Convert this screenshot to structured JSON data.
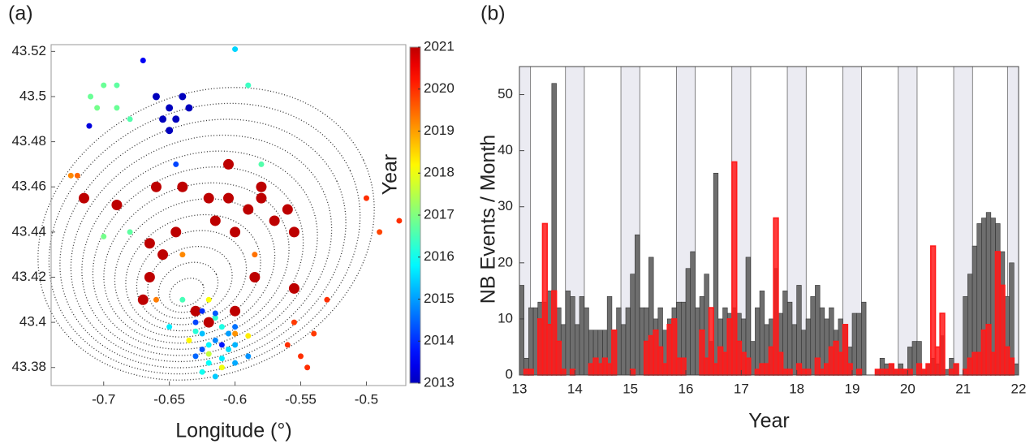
{
  "chart_data": [
    {
      "type": "scatter",
      "label": "(a)",
      "xlabel": "Longitude (°)",
      "colorbar_label": "Year",
      "colormap": "jet",
      "xlim": [
        -0.74,
        -0.47
      ],
      "ylim": [
        43.372,
        43.523
      ],
      "xticks": [
        -0.7,
        -0.65,
        -0.6,
        -0.55,
        -0.5
      ],
      "yticks": [
        43.38,
        43.4,
        43.42,
        43.44,
        43.46,
        43.48,
        43.5,
        43.52
      ],
      "clim": [
        2013,
        2021
      ],
      "cticks": [
        2013,
        2014,
        2015,
        2016,
        2017,
        2018,
        2019,
        2020,
        2021
      ],
      "x": [
        -0.715,
        -0.69,
        -0.66,
        -0.64,
        -0.62,
        -0.605,
        -0.59,
        -0.57,
        -0.555,
        -0.56,
        -0.665,
        -0.655,
        -0.67,
        -0.665,
        -0.63,
        -0.62,
        -0.6,
        -0.585,
        -0.555,
        -0.645,
        -0.6,
        -0.58,
        -0.605,
        -0.58,
        -0.615,
        -0.66,
        -0.65,
        -0.645,
        -0.655,
        -0.64,
        -0.65,
        -0.635,
        -0.711,
        -0.67,
        -0.71,
        -0.7,
        -0.69,
        -0.705,
        -0.69,
        -0.68,
        -0.7,
        -0.68,
        -0.6,
        -0.59,
        -0.63,
        -0.625,
        -0.62,
        -0.615,
        -0.61,
        -0.605,
        -0.63,
        -0.62,
        -0.61,
        -0.6,
        -0.625,
        -0.615,
        -0.605,
        -0.62,
        -0.635,
        -0.61,
        -0.6,
        -0.625,
        -0.615,
        -0.59,
        -0.64,
        -0.62,
        -0.625,
        -0.61,
        -0.6,
        -0.63,
        -0.615,
        -0.65,
        -0.59,
        -0.56,
        -0.55,
        -0.54,
        -0.545,
        -0.5,
        -0.49,
        -0.475,
        -0.53,
        -0.555,
        -0.72,
        -0.64,
        -0.66,
        -0.6,
        -0.585,
        -0.725,
        -0.58,
        -0.645
      ],
      "y": [
        43.455,
        43.452,
        43.46,
        43.46,
        43.455,
        43.455,
        43.45,
        43.445,
        43.44,
        43.45,
        43.435,
        43.43,
        43.41,
        43.42,
        43.405,
        43.4,
        43.405,
        43.42,
        43.415,
        43.44,
        43.44,
        43.455,
        43.47,
        43.46,
        43.445,
        43.5,
        43.495,
        43.49,
        43.49,
        43.5,
        43.485,
        43.495,
        43.487,
        43.516,
        43.5,
        43.505,
        43.505,
        43.495,
        43.495,
        43.49,
        43.438,
        43.44,
        43.521,
        43.505,
        43.4,
        43.395,
        43.39,
        43.392,
        43.398,
        43.388,
        43.385,
        43.382,
        43.38,
        43.39,
        43.405,
        43.402,
        43.395,
        43.386,
        43.392,
        43.384,
        43.398,
        43.378,
        43.376,
        43.385,
        43.41,
        43.41,
        43.388,
        43.39,
        43.382,
        43.396,
        43.404,
        43.398,
        43.394,
        43.39,
        43.385,
        43.395,
        43.38,
        43.455,
        43.44,
        43.445,
        43.41,
        43.4,
        43.465,
        43.43,
        43.41,
        43.395,
        43.43,
        43.465,
        43.47,
        43.47
      ],
      "c": [
        2021,
        2021,
        2021,
        2021,
        2021,
        2021,
        2021,
        2021,
        2021,
        2021,
        2021,
        2021,
        2021,
        2021,
        2021,
        2021,
        2021,
        2021,
        2021,
        2021,
        2021,
        2021,
        2021,
        2021,
        2021,
        2013,
        2013,
        2013,
        2013,
        2013,
        2013,
        2013,
        2013.3,
        2013.5,
        2016.8,
        2016.8,
        2016.7,
        2016.9,
        2016.8,
        2016.6,
        2016.9,
        2016.7,
        2015.5,
        2016.4,
        2014.2,
        2015.3,
        2015.8,
        2014.8,
        2016.1,
        2015.6,
        2014.5,
        2015.9,
        2018,
        2015.2,
        2014,
        2016.3,
        2015,
        2017.6,
        2018.2,
        2015.7,
        2014.6,
        2016,
        2015.4,
        2014.9,
        2016.5,
        2018.1,
        2014.3,
        2013.8,
        2015.1,
        2016.2,
        2014.4,
        2015.7,
        2018.3,
        2020,
        2020,
        2019.9,
        2020,
        2020,
        2019.8,
        2020,
        2020,
        2019.9,
        2019.5,
        2019.2,
        2019.3,
        2019.1,
        2019.4,
        2019.2,
        2016.6,
        2014.2
      ]
    },
    {
      "type": "histogram",
      "label": "(b)",
      "xlabel": "Year",
      "ylabel": "NB Events / Month",
      "xlim": [
        13,
        22
      ],
      "ylim": [
        0,
        55
      ],
      "xticks": [
        13,
        14,
        15,
        16,
        17,
        18,
        19,
        20,
        21,
        22
      ],
      "yticks": [
        0,
        10,
        20,
        30,
        40,
        50
      ],
      "shaded_spans": [
        [
          13,
          13.2
        ],
        [
          13.83,
          14.17
        ],
        [
          14.83,
          15.17
        ],
        [
          15.83,
          16.17
        ],
        [
          16.83,
          17.17
        ],
        [
          17.83,
          18.17
        ],
        [
          18.83,
          19.17
        ],
        [
          19.83,
          20.17
        ],
        [
          20.83,
          21.17
        ],
        [
          21.8,
          22
        ]
      ],
      "bins": [
        13,
        13.083,
        13.167,
        13.25,
        13.333,
        13.417,
        13.5,
        13.583,
        13.667,
        13.75,
        13.833,
        13.917,
        14,
        14.083,
        14.167,
        14.25,
        14.333,
        14.417,
        14.5,
        14.583,
        14.667,
        14.75,
        14.833,
        14.917,
        15,
        15.083,
        15.167,
        15.25,
        15.333,
        15.417,
        15.5,
        15.583,
        15.667,
        15.75,
        15.833,
        15.917,
        16,
        16.083,
        16.167,
        16.25,
        16.333,
        16.417,
        16.5,
        16.583,
        16.667,
        16.75,
        16.833,
        16.917,
        17,
        17.083,
        17.167,
        17.25,
        17.333,
        17.417,
        17.5,
        17.583,
        17.667,
        17.75,
        17.833,
        17.917,
        18,
        18.083,
        18.167,
        18.25,
        18.333,
        18.417,
        18.5,
        18.583,
        18.667,
        18.75,
        18.833,
        18.917,
        19,
        19.083,
        19.167,
        19.25,
        19.333,
        19.417,
        19.5,
        19.583,
        19.667,
        19.75,
        19.833,
        19.917,
        20,
        20.083,
        20.167,
        20.25,
        20.333,
        20.417,
        20.5,
        20.583,
        20.667,
        20.75,
        20.833,
        20.917,
        21,
        21.083,
        21.167,
        21.25,
        21.333,
        21.417,
        21.5,
        21.583,
        21.667,
        21.75,
        21.833,
        21.917,
        22
      ],
      "series": [
        {
          "color": "#6e6e6e",
          "values": [
            16,
            3,
            12,
            12,
            13,
            13,
            15,
            52,
            12,
            9,
            15,
            14,
            9,
            14,
            12,
            8,
            8,
            8,
            8,
            14,
            8,
            12,
            9,
            12,
            18,
            25,
            12,
            12,
            21,
            10,
            12,
            8,
            10,
            12,
            13,
            13,
            19,
            22,
            12,
            14,
            18,
            6,
            36,
            10,
            12,
            11,
            12,
            11,
            10,
            21,
            6,
            12,
            15,
            9,
            10,
            19,
            11,
            15,
            13,
            9,
            16,
            8,
            10,
            14,
            16,
            12,
            10,
            12,
            8,
            10,
            9,
            5,
            11,
            11,
            13,
            0,
            0,
            1,
            3,
            2,
            2,
            1,
            2,
            1,
            5,
            6,
            6,
            1,
            2,
            3,
            2,
            7,
            1,
            3,
            2,
            0,
            14,
            18,
            23,
            27,
            28,
            29,
            28,
            27,
            22,
            14,
            20,
            2
          ]
        },
        {
          "color": "#ff1a1a",
          "values": [
            0,
            1,
            1,
            0,
            10,
            27,
            9,
            15,
            6,
            1,
            0,
            1,
            0,
            0,
            0,
            2,
            3,
            2,
            3,
            2,
            8,
            0,
            0,
            0,
            1,
            0,
            0,
            6,
            7,
            8,
            5,
            2,
            9,
            10,
            3,
            3,
            0,
            0,
            0,
            8,
            3,
            12,
            2,
            5,
            4,
            10,
            38,
            6,
            4,
            3,
            0,
            1,
            2,
            2,
            5,
            28,
            4,
            1,
            1,
            0,
            2,
            1,
            1,
            0,
            3,
            1,
            2,
            5,
            6,
            4,
            9,
            2,
            0,
            1,
            0,
            0,
            0,
            1,
            1,
            1,
            2,
            1,
            1,
            1,
            1,
            0,
            2,
            1,
            2,
            23,
            5,
            11,
            0,
            1,
            2,
            0,
            1,
            3,
            4,
            4,
            8,
            9,
            4,
            22,
            16,
            5,
            3,
            0
          ]
        }
      ]
    }
  ]
}
